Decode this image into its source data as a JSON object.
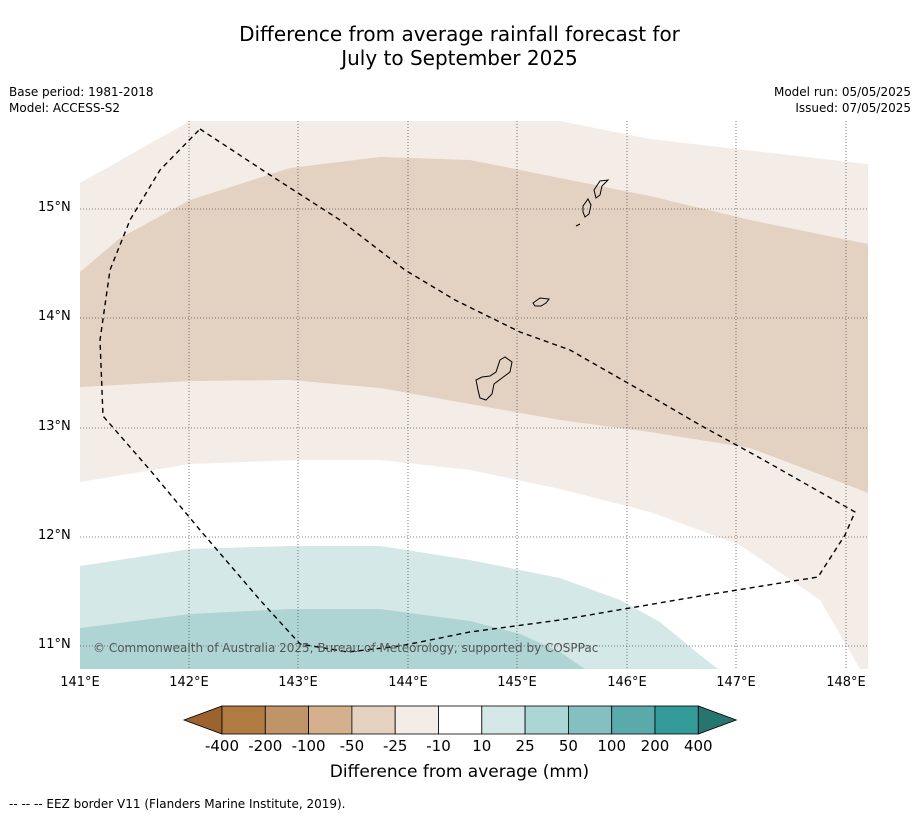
{
  "title_line1": "Difference from average rainfall forecast for",
  "title_line2": "July to September 2025",
  "base_period": "Base period: 1981-2018",
  "model": "Model: ACCESS-S2",
  "model_run": "Model run: 05/05/2025",
  "issued": "Issued: 07/05/2025",
  "copyright": "© Commonwealth of Australia 2025, Bureau of Meteorology, supported by COSPPac",
  "lat_ticks": [
    "15°N",
    "14°N",
    "13°N",
    "12°N",
    "11°N"
  ],
  "lon_ticks": [
    "141°E",
    "142°E",
    "143°E",
    "144°E",
    "145°E",
    "146°E",
    "147°E",
    "148°E"
  ],
  "colorbar": {
    "title": "Difference from average (mm)",
    "labels": [
      "-400",
      "-200",
      "-100",
      "-50",
      "-25",
      "-10",
      "10",
      "25",
      "50",
      "100",
      "200",
      "400"
    ],
    "colors": [
      "#9c6230",
      "#b07a40",
      "#bf9468",
      "#d4b08d",
      "#e4d1c0",
      "#f4ede7",
      "#ffffff",
      "#d3e8e7",
      "#acd5d5",
      "#86bfc0",
      "#5aaaac",
      "#339999",
      "#26766f"
    ]
  },
  "footnote": "--  --  -- EEZ border V11 (Flanders Marine Institute, 2019)."
}
